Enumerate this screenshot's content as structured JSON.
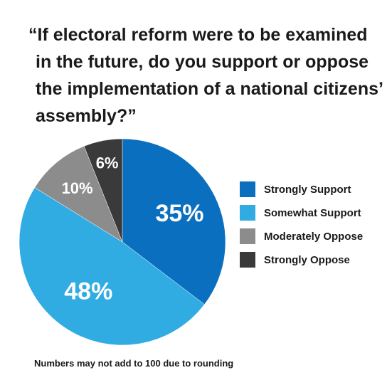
{
  "chart_data": {
    "type": "pie",
    "title": "“If electoral reform were to be examined in the future, do you support or oppose the implementation of a national citizens’ assembly?”",
    "categories": [
      "Strongly Support",
      "Somewhat Support",
      "Moderately Oppose",
      "Strongly Oppose"
    ],
    "values": [
      35,
      48,
      10,
      6
    ],
    "labels": [
      "35%",
      "48%",
      "10%",
      "6%"
    ],
    "colors": [
      "#0b6fbf",
      "#31ace3",
      "#8c8c8c",
      "#3a3a3a"
    ],
    "legend_position": "right",
    "footnote": "Numbers may not add to 100 due to rounding"
  }
}
